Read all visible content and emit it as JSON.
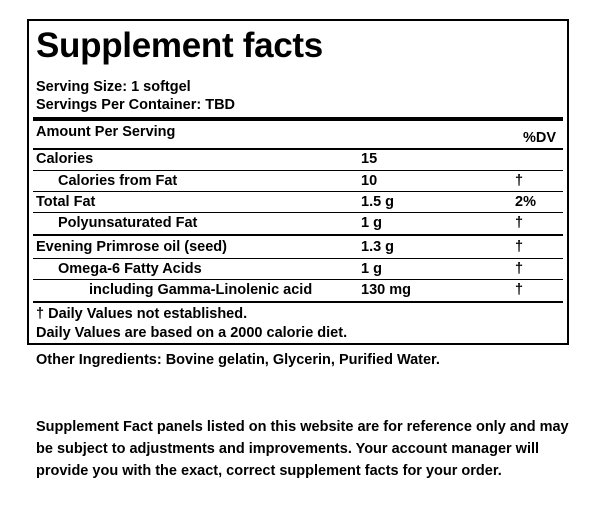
{
  "panel": {
    "title": "Supplement facts",
    "serving_size": "Serving Size: 1 softgel",
    "servings_per_container": "Servings Per Container: TBD",
    "amount_header": "Amount Per Serving",
    "dv_header": "%DV",
    "rows": [
      {
        "name": "Calories",
        "amount": "15",
        "dv": ""
      },
      {
        "name": "Calories from Fat",
        "amount": "10",
        "dv": "†"
      },
      {
        "name": "Total Fat",
        "amount": "1.5 g",
        "dv": "2%"
      },
      {
        "name": "Polyunsaturated Fat",
        "amount": "1 g",
        "dv": "†"
      },
      {
        "name": "Evening Primrose oil (seed)",
        "amount": "1.3 g",
        "dv": "†"
      },
      {
        "name": "Omega-6 Fatty Acids",
        "amount": "1 g",
        "dv": "†"
      },
      {
        "name": "including Gamma-Linolenic acid",
        "amount": "130 mg",
        "dv": "†"
      }
    ],
    "footnote_1": "† Daily Values not established.",
    "footnote_2": "Daily Values are based on a 2000 calorie diet."
  },
  "other_ingredients": "Other Ingredients: Bovine gelatin, Glycerin, Purified Water.",
  "disclaimer": "Supplement Fact panels listed on this website are for reference only and may be subject to adjustments and improvements. Your account manager will provide you with the exact, correct supplement facts for your order."
}
